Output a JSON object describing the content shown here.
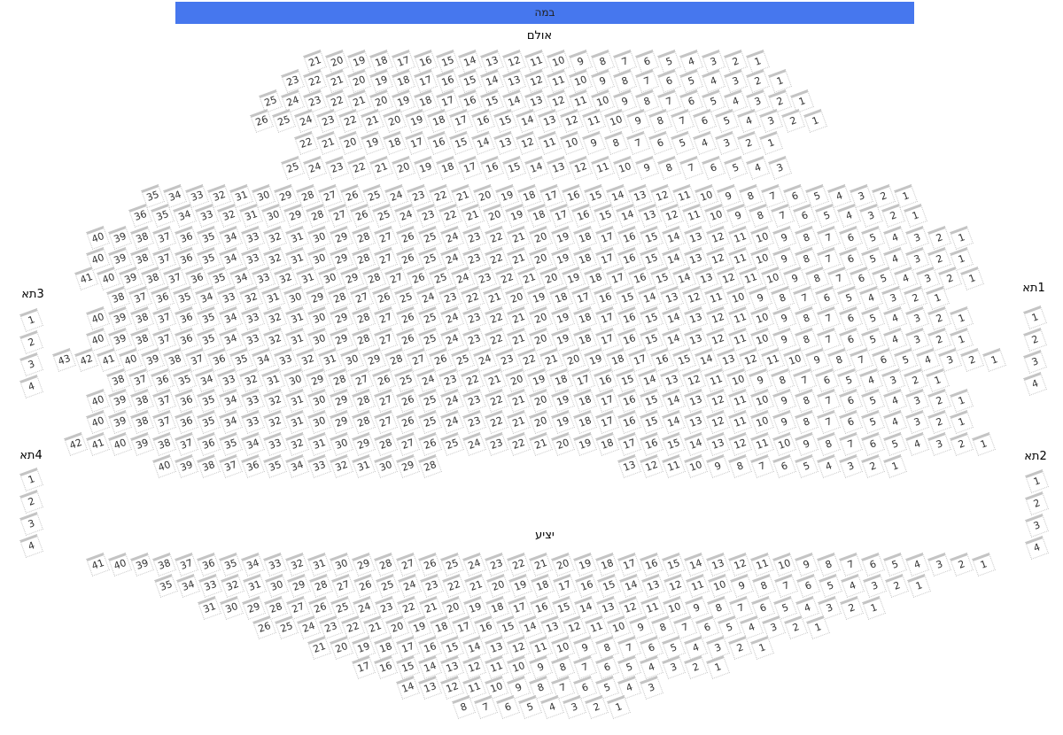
{
  "stage": {
    "label": "במה",
    "color": "#4677ee"
  },
  "hall": {
    "label": "אולם",
    "rows": [
      [
        [
          21,
          1
        ]
      ],
      [
        [
          23,
          1
        ]
      ],
      [
        [
          25,
          1
        ]
      ],
      [
        [
          26,
          1
        ]
      ],
      [
        [
          22,
          1
        ]
      ],
      [
        [
          25,
          3
        ]
      ],
      [
        [
          35,
          1
        ]
      ],
      [
        [
          36,
          1
        ]
      ],
      [
        [
          40,
          1
        ]
      ],
      [
        [
          40,
          1
        ]
      ],
      [
        [
          41,
          1
        ]
      ],
      [
        [
          38,
          1
        ]
      ],
      [
        [
          40,
          1
        ]
      ],
      [
        [
          40,
          1
        ]
      ],
      [
        [
          43,
          1
        ]
      ],
      [
        [
          38,
          1
        ]
      ],
      [
        [
          40,
          1
        ]
      ],
      [
        [
          40,
          1
        ]
      ],
      [
        [
          42,
          1
        ]
      ],
      [
        [
          40,
          28
        ],
        [
          13,
          1
        ]
      ]
    ]
  },
  "balcony": {
    "label": "יציע",
    "rows": [
      [
        [
          41,
          1
        ]
      ],
      [
        [
          35,
          1
        ]
      ],
      [
        [
          31,
          1
        ]
      ],
      [
        [
          26,
          1
        ]
      ],
      [
        [
          21,
          1
        ]
      ],
      [
        [
          17,
          1
        ]
      ],
      [
        [
          14,
          3
        ]
      ],
      [
        [
          8,
          1
        ]
      ]
    ]
  },
  "boxes": [
    {
      "name": "תא",
      "number": "3",
      "seats": [
        1,
        2,
        3,
        4
      ]
    },
    {
      "name": "תא",
      "number": "4",
      "seats": [
        1,
        2,
        3,
        4
      ]
    },
    {
      "name": "תא",
      "number": "1",
      "seats": [
        1,
        2,
        3,
        4
      ]
    },
    {
      "name": "תא",
      "number": "2",
      "seats": [
        1,
        2,
        3,
        4
      ]
    }
  ]
}
